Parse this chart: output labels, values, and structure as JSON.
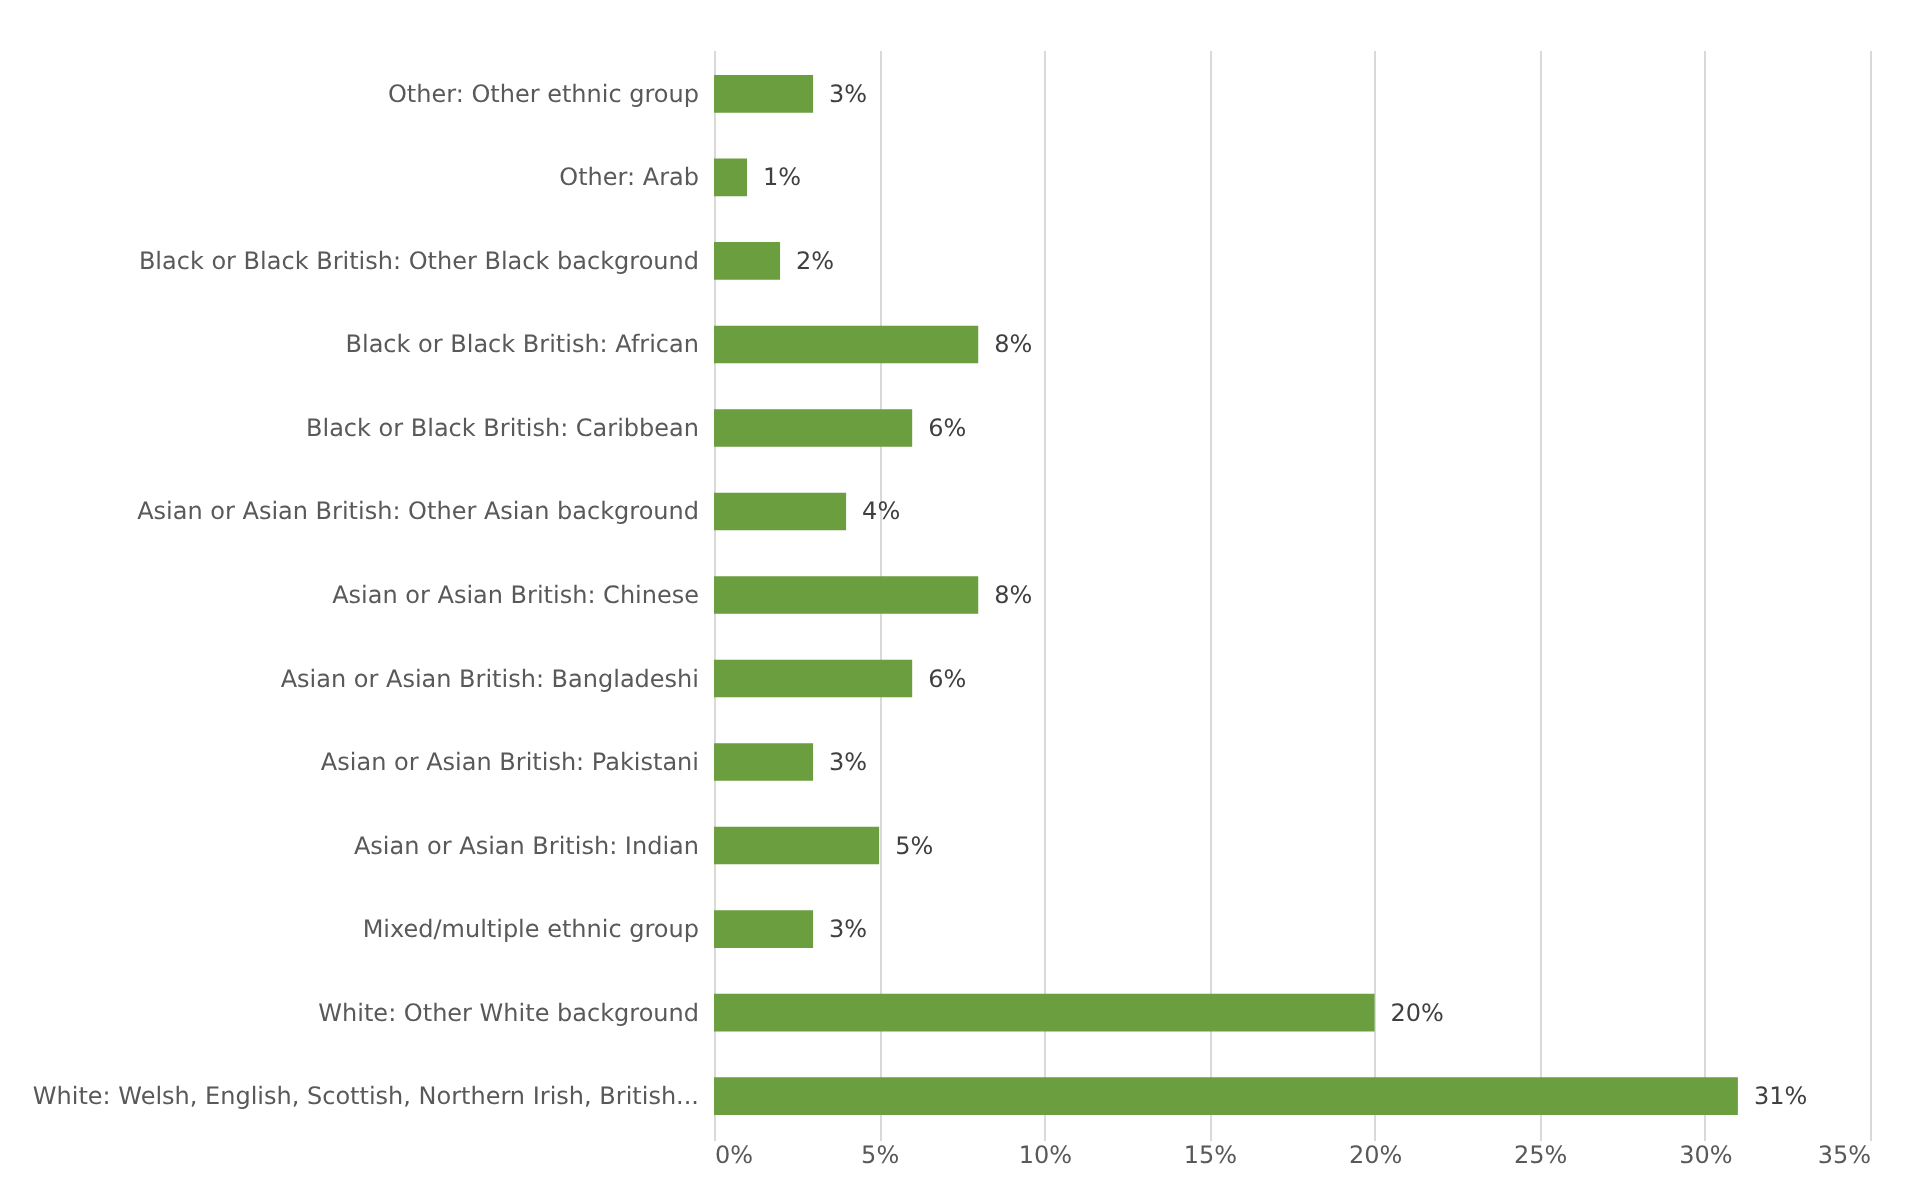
{
  "chart_data": {
    "type": "bar",
    "orientation": "horizontal",
    "categories": [
      "Other: Other ethnic group",
      "Other: Arab",
      "Black or Black British: Other Black background",
      "Black or Black British: African",
      "Black or Black British: Caribbean",
      "Asian or Asian British: Other Asian background",
      "Asian or Asian British: Chinese",
      "Asian or Asian British: Bangladeshi",
      "Asian or Asian British: Pakistani",
      "Asian or Asian British: Indian",
      "Mixed/multiple ethnic group",
      "White: Other White background",
      "White: Welsh, English, Scottish, Northern Irish, British..."
    ],
    "values": [
      3,
      1,
      2,
      8,
      6,
      4,
      8,
      6,
      3,
      5,
      3,
      20,
      31
    ],
    "value_labels": [
      "3%",
      "1%",
      "2%",
      "8%",
      "6%",
      "4%",
      "8%",
      "6%",
      "3%",
      "5%",
      "3%",
      "20%",
      "31%"
    ],
    "color": "#6a9e3f",
    "xlim": [
      0,
      35
    ],
    "xticks": [
      {
        "value": 0,
        "label": "0%"
      },
      {
        "value": 5,
        "label": "5%"
      },
      {
        "value": 10,
        "label": "10%"
      },
      {
        "value": 15,
        "label": "15%"
      },
      {
        "value": 20,
        "label": "20%"
      },
      {
        "value": 25,
        "label": "25%"
      },
      {
        "value": 30,
        "label": "30%"
      },
      {
        "value": 35,
        "label": "35%"
      }
    ],
    "grid": "x"
  }
}
